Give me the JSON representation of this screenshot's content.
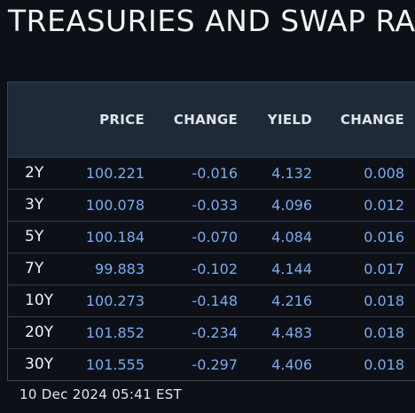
{
  "title": "TREASURIES AND SWAP RA",
  "table": {
    "headers": [
      "",
      "PRICE",
      "CHANGE",
      "YIELD",
      "CHANGE"
    ],
    "rows": [
      {
        "tenor": "2Y",
        "price": "100.221",
        "price_change": "-0.016",
        "yield": "4.132",
        "yield_change": "0.008"
      },
      {
        "tenor": "3Y",
        "price": "100.078",
        "price_change": "-0.033",
        "yield": "4.096",
        "yield_change": "0.012"
      },
      {
        "tenor": "5Y",
        "price": "100.184",
        "price_change": "-0.070",
        "yield": "4.084",
        "yield_change": "0.016"
      },
      {
        "tenor": "7Y",
        "price": "99.883",
        "price_change": "-0.102",
        "yield": "4.144",
        "yield_change": "0.017"
      },
      {
        "tenor": "10Y",
        "price": "100.273",
        "price_change": "-0.148",
        "yield": "4.216",
        "yield_change": "0.018"
      },
      {
        "tenor": "20Y",
        "price": "101.852",
        "price_change": "-0.234",
        "yield": "4.483",
        "yield_change": "0.018"
      },
      {
        "tenor": "30Y",
        "price": "101.555",
        "price_change": "-0.297",
        "yield": "4.406",
        "yield_change": "0.018"
      }
    ]
  },
  "timestamp": "10 Dec 2024 05:41 EST",
  "colors": {
    "background": "#0d1117",
    "header_background": "#1e2a38",
    "value_text": "#7aaaf0",
    "label_text": "#eef1f4"
  }
}
